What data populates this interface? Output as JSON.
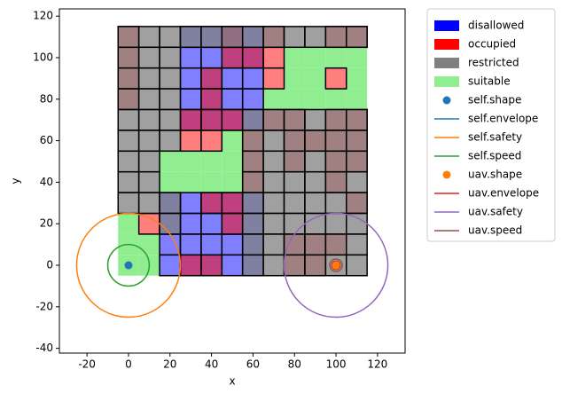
{
  "chart_data": {
    "type": "grid_map",
    "xlabel": "x",
    "ylabel": "y",
    "xlim": [
      -33.3,
      133.3
    ],
    "ylim": [
      -42.3,
      123.5
    ],
    "xticks": [
      -20,
      0,
      20,
      40,
      60,
      80,
      100,
      120
    ],
    "yticks": [
      -40,
      -20,
      0,
      20,
      40,
      60,
      80,
      100,
      120
    ],
    "series": [
      {
        "name": "disallowed",
        "kind": "cells",
        "color": "#0000ff",
        "alpha": 0.5,
        "size": 10,
        "x": [
          30,
          40,
          50,
          60,
          30,
          40,
          50,
          60,
          30,
          40,
          50,
          60,
          30,
          40,
          50,
          60,
          30,
          40,
          50,
          60,
          20,
          30,
          40,
          50,
          60,
          20,
          30,
          40,
          50,
          60,
          20,
          30,
          40,
          50,
          60,
          20,
          30,
          40,
          50,
          60
        ],
        "y": [
          110,
          110,
          110,
          110,
          100,
          100,
          100,
          100,
          90,
          90,
          90,
          90,
          80,
          80,
          80,
          80,
          70,
          70,
          70,
          70,
          30,
          30,
          30,
          30,
          30,
          20,
          20,
          20,
          20,
          20,
          10,
          10,
          10,
          10,
          10,
          0,
          0,
          0,
          0,
          0
        ]
      },
      {
        "name": "occupied",
        "kind": "cells",
        "color": "#ff0000",
        "alpha": 0.5,
        "size": 10,
        "x": [
          0,
          50,
          70,
          100,
          110,
          0,
          50,
          60,
          70,
          0,
          40,
          70,
          100,
          0,
          40,
          30,
          40,
          50,
          70,
          80,
          100,
          110,
          30,
          40,
          60,
          80,
          90,
          100,
          110,
          60,
          80,
          100,
          110,
          60,
          100,
          40,
          50,
          110,
          10,
          50,
          80,
          90,
          100,
          30,
          40,
          80,
          90
        ],
        "y": [
          110,
          110,
          110,
          110,
          110,
          100,
          100,
          100,
          100,
          90,
          90,
          90,
          90,
          80,
          80,
          70,
          70,
          70,
          70,
          70,
          70,
          70,
          60,
          60,
          60,
          60,
          60,
          60,
          60,
          50,
          50,
          50,
          50,
          40,
          40,
          30,
          30,
          30,
          20,
          20,
          10,
          10,
          10,
          0,
          0,
          0,
          0
        ]
      },
      {
        "name": "restricted",
        "kind": "cells",
        "color": "#808080",
        "alpha": 0.75,
        "size": 10,
        "x": [
          0,
          10,
          20,
          30,
          40,
          50,
          60,
          70,
          80,
          90,
          100,
          110,
          0,
          10,
          20,
          0,
          10,
          20,
          0,
          10,
          20,
          0,
          10,
          20,
          60,
          70,
          80,
          90,
          100,
          110,
          0,
          10,
          20,
          60,
          70,
          80,
          90,
          100,
          110,
          0,
          10,
          60,
          70,
          80,
          90,
          100,
          110,
          0,
          10,
          60,
          70,
          80,
          90,
          100,
          110,
          0,
          10,
          20,
          60,
          70,
          80,
          90,
          100,
          110,
          20,
          60,
          70,
          80,
          90,
          100,
          110,
          60,
          70,
          80,
          90,
          100,
          110,
          60,
          70,
          80,
          90,
          100,
          110
        ],
        "y": [
          110,
          110,
          110,
          110,
          110,
          110,
          110,
          110,
          110,
          110,
          110,
          110,
          100,
          100,
          100,
          90,
          90,
          90,
          80,
          80,
          80,
          70,
          70,
          70,
          70,
          70,
          70,
          70,
          70,
          70,
          60,
          60,
          60,
          60,
          60,
          60,
          60,
          60,
          60,
          50,
          50,
          50,
          50,
          50,
          50,
          50,
          50,
          40,
          40,
          40,
          40,
          40,
          40,
          40,
          40,
          30,
          30,
          30,
          30,
          30,
          30,
          30,
          30,
          30,
          20,
          20,
          20,
          20,
          20,
          20,
          20,
          10,
          10,
          10,
          10,
          10,
          10,
          0,
          0,
          0,
          0,
          0,
          0
        ]
      },
      {
        "name": "suitable",
        "kind": "cells",
        "color": "#90ee90",
        "alpha": 1,
        "size": 10,
        "x": [
          80,
          90,
          100,
          110,
          80,
          90,
          110,
          70,
          80,
          90,
          100,
          110,
          50,
          20,
          30,
          40,
          50,
          20,
          30,
          40,
          50,
          0,
          0,
          10,
          0,
          10
        ],
        "y": [
          100,
          100,
          100,
          100,
          90,
          90,
          90,
          80,
          80,
          80,
          80,
          80,
          60,
          50,
          50,
          50,
          50,
          40,
          40,
          40,
          40,
          20,
          10,
          10,
          0,
          0
        ]
      },
      {
        "name": "self.shape",
        "kind": "point",
        "color": "#1f77b4",
        "x": 0,
        "y": 0
      },
      {
        "name": "self.envelope",
        "kind": "circle",
        "color": "#1f77b4",
        "x": 0,
        "y": 0,
        "radius": 1
      },
      {
        "name": "self.safety",
        "kind": "circle",
        "color": "#ff7f0e",
        "x": 0,
        "y": 0,
        "radius": 25
      },
      {
        "name": "self.speed",
        "kind": "circle",
        "color": "#2ca02c",
        "x": 0,
        "y": 0,
        "radius": 10
      },
      {
        "name": "uav.shape",
        "kind": "point",
        "color": "#ff7f0e",
        "x": 100,
        "y": 0
      },
      {
        "name": "uav.envelope",
        "kind": "circle",
        "color": "#d62728",
        "x": 100,
        "y": 0,
        "radius": 2
      },
      {
        "name": "uav.safety",
        "kind": "circle",
        "color": "#9467bd",
        "x": 100,
        "y": 0,
        "radius": 25
      },
      {
        "name": "uav.speed",
        "kind": "circle",
        "color": "#8c564b",
        "x": 100,
        "y": 0,
        "radius": 3
      }
    ],
    "draw_order": [
      "suitable",
      "disallowed",
      "occupied",
      "restricted"
    ]
  }
}
